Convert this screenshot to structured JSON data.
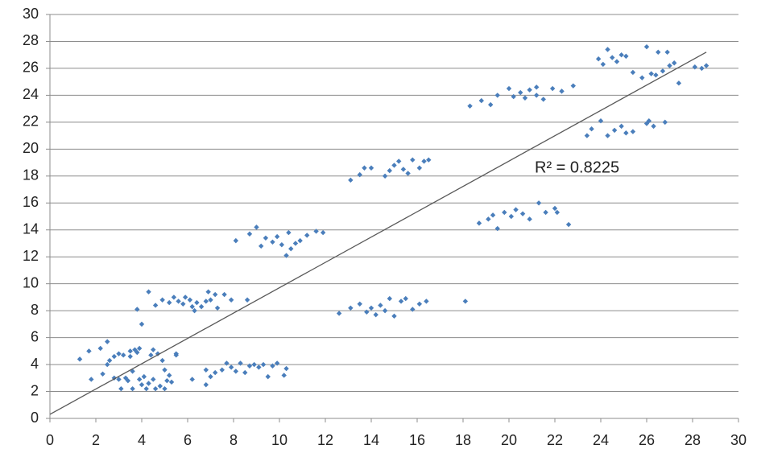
{
  "chart_data": {
    "type": "scatter",
    "color": "#4a7ebb",
    "x": [
      1.3,
      1.7,
      1.8,
      2.2,
      2.3,
      2.5,
      2.5,
      2.6,
      2.8,
      2.8,
      3.0,
      3.0,
      3.1,
      3.2,
      3.3,
      3.4,
      3.5,
      3.5,
      3.6,
      3.6,
      3.7,
      3.8,
      3.9,
      3.9,
      4.0,
      4.1,
      4.2,
      4.3,
      4.4,
      4.5,
      4.5,
      4.6,
      4.7,
      4.8,
      4.9,
      5.0,
      5.0,
      5.1,
      5.2,
      5.3,
      5.5,
      5.5,
      4.0,
      3.8,
      4.3,
      4.6,
      4.9,
      5.2,
      5.4,
      5.6,
      5.8,
      5.9,
      6.1,
      6.2,
      6.3,
      6.4,
      6.6,
      6.8,
      6.9,
      7.0,
      7.2,
      7.3,
      7.6,
      7.9,
      8.6,
      6.2,
      6.8,
      6.8,
      7.0,
      7.2,
      7.5,
      7.7,
      7.9,
      8.1,
      8.3,
      8.5,
      8.7,
      8.9,
      9.1,
      9.3,
      9.5,
      9.7,
      9.9,
      10.2,
      10.3,
      8.1,
      8.7,
      9.0,
      9.2,
      9.4,
      9.7,
      9.9,
      10.1,
      10.3,
      10.4,
      10.5,
      10.7,
      10.9,
      11.2,
      11.6,
      11.9,
      13.1,
      13.5,
      13.7,
      14.0,
      14.6,
      14.8,
      15.0,
      15.2,
      15.4,
      15.6,
      15.8,
      16.1,
      16.3,
      16.5,
      12.6,
      13.1,
      13.5,
      13.8,
      14.0,
      14.2,
      14.4,
      14.6,
      14.8,
      15.0,
      15.3,
      15.5,
      15.8,
      16.1,
      16.4,
      18.1,
      18.3,
      18.8,
      19.2,
      19.5,
      20.0,
      20.2,
      20.5,
      20.7,
      20.9,
      21.2,
      21.5,
      21.9,
      22.3,
      22.8,
      21.2,
      18.7,
      19.1,
      19.3,
      19.5,
      19.8,
      20.1,
      20.3,
      20.6,
      20.9,
      21.3,
      21.6,
      22.0,
      22.1,
      22.6,
      23.4,
      23.6,
      24.0,
      24.3,
      24.6,
      24.9,
      25.1,
      25.4,
      26.0,
      26.1,
      26.3,
      26.8,
      23.9,
      24.1,
      24.3,
      24.5,
      24.7,
      24.9,
      25.1,
      25.4,
      25.8,
      26.0,
      26.2,
      26.4,
      26.5,
      26.7,
      26.9,
      27.0,
      27.2,
      27.4,
      28.1,
      28.4,
      28.6
    ],
    "values": [
      4.4,
      5.0,
      2.9,
      5.2,
      3.3,
      5.7,
      4.0,
      4.3,
      4.6,
      3.0,
      4.8,
      2.9,
      2.2,
      4.7,
      3.0,
      2.8,
      5.0,
      4.6,
      3.5,
      2.2,
      5.1,
      4.9,
      2.9,
      5.2,
      2.5,
      3.1,
      2.2,
      2.6,
      4.7,
      5.1,
      2.9,
      2.2,
      4.8,
      2.4,
      4.3,
      3.6,
      2.2,
      2.8,
      3.2,
      2.7,
      4.8,
      4.7,
      7.0,
      8.1,
      9.4,
      8.4,
      8.8,
      8.6,
      9.0,
      8.7,
      8.5,
      9.0,
      8.8,
      8.3,
      8.0,
      8.6,
      8.3,
      8.7,
      9.4,
      8.8,
      9.2,
      8.2,
      9.2,
      8.8,
      8.8,
      2.9,
      2.5,
      3.6,
      3.1,
      3.4,
      3.6,
      4.1,
      3.8,
      3.5,
      4.1,
      3.4,
      3.9,
      4.0,
      3.8,
      4.0,
      3.1,
      3.9,
      4.1,
      3.2,
      3.7,
      13.2,
      13.7,
      14.2,
      12.8,
      13.4,
      13.1,
      13.5,
      12.9,
      12.1,
      13.8,
      12.6,
      13.0,
      13.2,
      13.6,
      13.9,
      13.8,
      17.7,
      18.1,
      18.6,
      18.6,
      18.0,
      18.4,
      18.8,
      19.1,
      18.5,
      18.2,
      19.2,
      18.6,
      19.1,
      19.2,
      7.8,
      8.2,
      8.5,
      7.9,
      8.2,
      7.7,
      8.4,
      8.0,
      8.9,
      7.6,
      8.7,
      8.9,
      8.1,
      8.5,
      8.7,
      8.7,
      23.2,
      23.6,
      23.3,
      24.0,
      24.5,
      23.9,
      24.2,
      23.8,
      24.4,
      24.0,
      23.7,
      24.5,
      24.3,
      24.7,
      24.6,
      14.5,
      14.8,
      15.1,
      14.1,
      15.3,
      15.0,
      15.5,
      15.2,
      14.8,
      16.0,
      15.3,
      15.6,
      15.3,
      14.4,
      21.0,
      21.5,
      22.1,
      21.0,
      21.4,
      21.7,
      21.2,
      21.3,
      21.9,
      22.1,
      21.7,
      22.0,
      26.7,
      26.3,
      27.4,
      26.8,
      26.5,
      27.0,
      26.9,
      25.7,
      25.3,
      27.6,
      25.6,
      25.5,
      27.2,
      25.8,
      27.2,
      26.2,
      26.4,
      24.9,
      26.1,
      26.0,
      26.2
    ],
    "trendline": {
      "x": [
        0,
        28.6
      ],
      "values": [
        0.3,
        27.2
      ],
      "color": "#595959"
    },
    "annotation": "R² = 0.8225",
    "xlim": [
      0,
      30
    ],
    "xticks": [
      0,
      2,
      4,
      6,
      8,
      10,
      12,
      14,
      16,
      18,
      20,
      22,
      24,
      26,
      28,
      30
    ],
    "ylim": [
      0,
      30
    ],
    "yticks": [
      0,
      2,
      4,
      6,
      8,
      10,
      12,
      14,
      16,
      18,
      20,
      22,
      24,
      26,
      28,
      30
    ],
    "grid": true
  }
}
